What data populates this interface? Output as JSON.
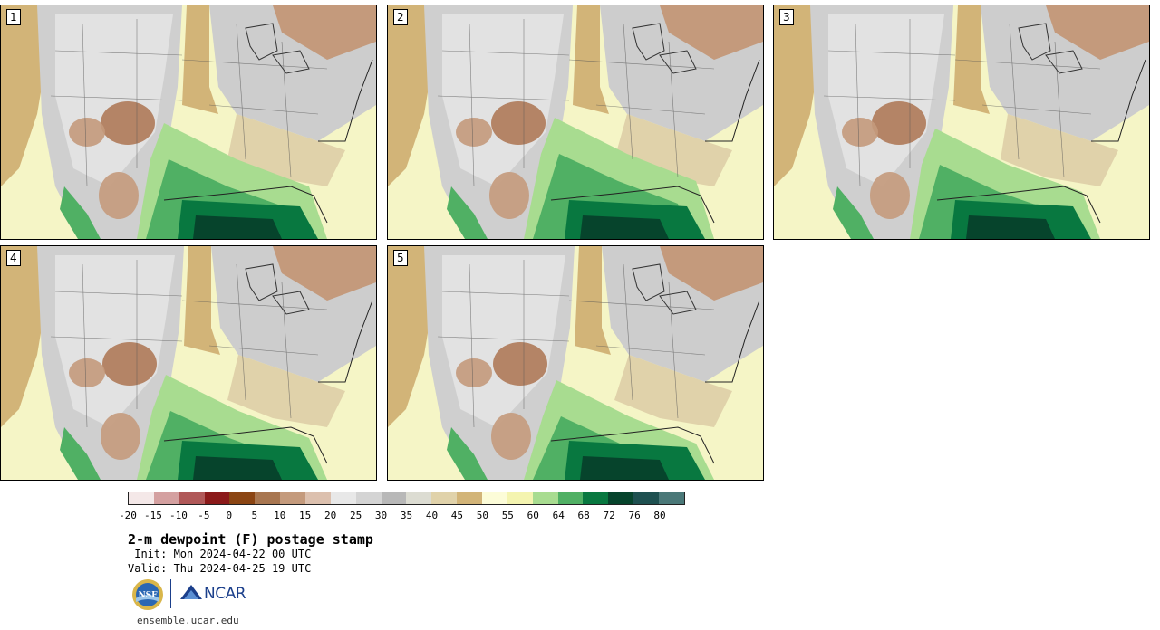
{
  "panels": [
    {
      "label": "1"
    },
    {
      "label": "2"
    },
    {
      "label": "3"
    },
    {
      "label": "4"
    },
    {
      "label": "5"
    }
  ],
  "colorbar": {
    "colors": [
      "#f4e8e8",
      "#d4a0a0",
      "#b05858",
      "#8b1a1a",
      "#8b4513",
      "#a87650",
      "#c49a7c",
      "#dcc0ae",
      "#e8e8e8",
      "#d4d4d4",
      "#b8b8b8",
      "#dcdcd2",
      "#e0d2aa",
      "#d2b478",
      "#fcfcd8",
      "#f4f4b0",
      "#a8dc90",
      "#50b064",
      "#087840",
      "#06442c",
      "#1e5050",
      "#4a7878"
    ],
    "ticks": [
      "-20",
      "-15",
      "-10",
      "-5",
      "0",
      "5",
      "10",
      "15",
      "20",
      "25",
      "30",
      "35",
      "40",
      "45",
      "50",
      "55",
      "60",
      "64",
      "68",
      "72",
      "76",
      "80"
    ]
  },
  "title": "2-m dewpoint (F) postage stamp",
  "init": " Init: Mon 2024-04-22 00 UTC",
  "valid": "Valid: Thu 2024-04-25 19 UTC",
  "logos": {
    "nsf": "NSF",
    "ncar": "NCAR"
  },
  "site": "ensemble.ucar.edu"
}
